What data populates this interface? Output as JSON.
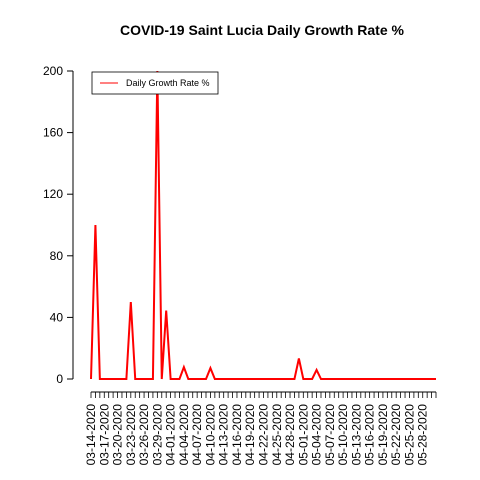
{
  "chart_data": {
    "type": "line",
    "title": "COVID-19 Saint Lucia Daily Growth Rate %",
    "xlabel": "",
    "ylabel": "",
    "ylim": [
      0,
      200
    ],
    "yticks": [
      0,
      40,
      80,
      120,
      160,
      200
    ],
    "x": [
      "03-14-2020",
      "03-15-2020",
      "03-16-2020",
      "03-17-2020",
      "03-18-2020",
      "03-19-2020",
      "03-20-2020",
      "03-21-2020",
      "03-22-2020",
      "03-23-2020",
      "03-24-2020",
      "03-25-2020",
      "03-26-2020",
      "03-27-2020",
      "03-28-2020",
      "03-29-2020",
      "03-30-2020",
      "03-31-2020",
      "04-01-2020",
      "04-02-2020",
      "04-03-2020",
      "04-04-2020",
      "04-05-2020",
      "04-06-2020",
      "04-07-2020",
      "04-08-2020",
      "04-09-2020",
      "04-10-2020",
      "04-11-2020",
      "04-12-2020",
      "04-13-2020",
      "04-14-2020",
      "04-15-2020",
      "04-16-2020",
      "04-17-2020",
      "04-18-2020",
      "04-19-2020",
      "04-20-2020",
      "04-21-2020",
      "04-22-2020",
      "04-23-2020",
      "04-24-2020",
      "04-25-2020",
      "04-26-2020",
      "04-27-2020",
      "04-28-2020",
      "04-29-2020",
      "04-30-2020",
      "05-01-2020",
      "05-02-2020",
      "05-03-2020",
      "05-04-2020",
      "05-05-2020",
      "05-06-2020",
      "05-07-2020",
      "05-08-2020",
      "05-09-2020",
      "05-10-2020",
      "05-11-2020",
      "05-12-2020",
      "05-13-2020",
      "05-14-2020",
      "05-15-2020",
      "05-16-2020",
      "05-17-2020",
      "05-18-2020",
      "05-19-2020",
      "05-20-2020",
      "05-21-2020",
      "05-22-2020",
      "05-23-2020",
      "05-24-2020",
      "05-25-2020",
      "05-26-2020",
      "05-27-2020",
      "05-28-2020",
      "05-29-2020",
      "05-30-2020",
      "05-31-2020"
    ],
    "xtick_labels": [
      "03-14-2020",
      "03-17-2020",
      "03-20-2020",
      "03-23-2020",
      "03-26-2020",
      "03-29-2020",
      "04-01-2020",
      "04-04-2020",
      "04-07-2020",
      "04-10-2020",
      "04-13-2020",
      "04-16-2020",
      "04-19-2020",
      "04-22-2020",
      "04-25-2020",
      "04-28-2020",
      "05-01-2020",
      "05-04-2020",
      "05-07-2020",
      "05-10-2020",
      "05-13-2020",
      "05-16-2020",
      "05-19-2020",
      "05-22-2020",
      "05-25-2020",
      "05-28-2020"
    ],
    "series": [
      {
        "name": "Daily Growth Rate %",
        "color": "#ff0000",
        "values": [
          0,
          100,
          0,
          0,
          0,
          0,
          0,
          0,
          0,
          50,
          0,
          0,
          0,
          0,
          0,
          200,
          0,
          44.4,
          0,
          0,
          0,
          7.7,
          0,
          0,
          0,
          0,
          0,
          7.1,
          0,
          0,
          0,
          0,
          0,
          0,
          0,
          0,
          0,
          0,
          0,
          0,
          0,
          0,
          0,
          0,
          0,
          0,
          0,
          13.3,
          0,
          0,
          0,
          5.9,
          0,
          0,
          0,
          0,
          0,
          0,
          0,
          0,
          0,
          0,
          0,
          0,
          0,
          0,
          0,
          0,
          0,
          0,
          0,
          0,
          0,
          0,
          0,
          0,
          0,
          0,
          0
        ]
      }
    ],
    "legend_position": "top-left",
    "grid": false
  }
}
